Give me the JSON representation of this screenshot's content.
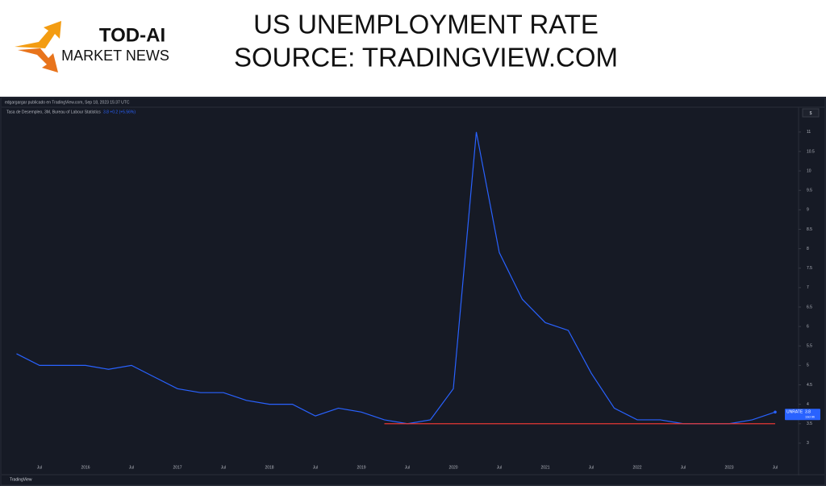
{
  "header": {
    "brand": "TOD-AI",
    "brand_sub": "MARKET NEWS",
    "title": "US UNEMPLOYMENT RATE",
    "subtitle": "SOURCE: TRADINGVIEW.COM"
  },
  "chart_data": {
    "type": "line",
    "author_line": "edgargargar publicado en TradingView.com, Sep 18, 2023 15:37 UTC",
    "legend_text": "Tasa de Desempleo, 3M, Bureau of Labour Statistics",
    "legend_value": "3.8  +0.2 (+5.56%)",
    "currency_button": "$",
    "footer": "TradingView",
    "badge": {
      "name": "UNRATE",
      "value": "3.8",
      "countdown": "13d 9h"
    },
    "categories": [
      null,
      "Jul",
      null,
      "2016",
      null,
      "Jul",
      null,
      "2017",
      null,
      "Jul",
      null,
      "2018",
      null,
      "Jul",
      null,
      "2019",
      null,
      "Jul",
      null,
      "2020",
      null,
      "Jul",
      null,
      "2021",
      null,
      "Jul",
      null,
      "2022",
      null,
      "Jul",
      null,
      "2023",
      null,
      "Jul"
    ],
    "series": [
      {
        "name": "UNRATE",
        "color": "#2962ff",
        "values": [
          5.3,
          5.0,
          5.0,
          5.0,
          4.9,
          5.0,
          4.7,
          4.4,
          4.3,
          4.3,
          4.1,
          4.0,
          4.0,
          3.7,
          3.9,
          3.8,
          3.6,
          3.5,
          3.6,
          4.4,
          11.0,
          7.9,
          6.7,
          6.1,
          5.9,
          4.8,
          3.9,
          3.6,
          3.6,
          3.5,
          3.5,
          3.5,
          3.6,
          3.8
        ]
      }
    ],
    "hline": {
      "value": 3.5,
      "color": "#e53935"
    },
    "ylim": [
      2.48,
      11.39
    ],
    "yticks": [
      3,
      3.5,
      4,
      4.5,
      5,
      5.5,
      6,
      6.5,
      7,
      7.5,
      8,
      8.5,
      9,
      9.5,
      10,
      10.5,
      11
    ]
  }
}
